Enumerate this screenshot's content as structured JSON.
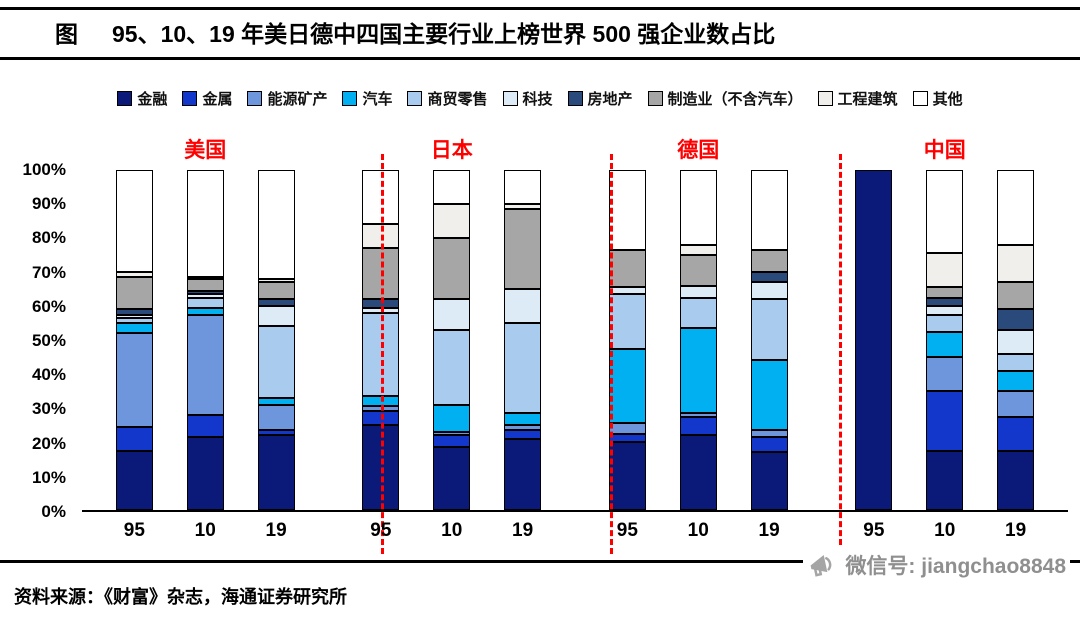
{
  "header": {
    "title_prefix": "图",
    "title_text": "95、10、19 年美日德中四国主要行业上榜世界 500 强企业数占比"
  },
  "footer": {
    "source": "资料来源：《财富》杂志，海通证券研究所",
    "watermark": "微信号: jiangchao8848"
  },
  "chart_data": {
    "type": "bar",
    "stacked": true,
    "unit": "%",
    "title": "95、10、19 年美日德中四国主要行业上榜世界 500 强企业数占比",
    "groups": [
      "美国",
      "日本",
      "德国",
      "中国"
    ],
    "group_label_color": "#ff0000",
    "separator_color": "#ff0000",
    "categories": [
      "95",
      "10",
      "19",
      "95",
      "10",
      "19",
      "95",
      "10",
      "19",
      "95",
      "10",
      "19"
    ],
    "ylim": [
      0,
      100
    ],
    "yticks": [
      "100%",
      "90%",
      "80%",
      "70%",
      "60%",
      "50%",
      "40%",
      "30%",
      "20%",
      "10%",
      "0%"
    ],
    "grid": false,
    "legend_position": "top",
    "series": [
      {
        "name": "金融",
        "color": "#0b1a78",
        "values": [
          17.5,
          21.5,
          22,
          25,
          18.5,
          21,
          20,
          22,
          17,
          100,
          17.5,
          17.5
        ]
      },
      {
        "name": "金属",
        "color": "#1337cb",
        "values": [
          7,
          6.5,
          1.5,
          4,
          3.5,
          2.5,
          2.5,
          5.5,
          4.5,
          0,
          17.5,
          10
        ]
      },
      {
        "name": "能源矿产",
        "color": "#6e96dc",
        "values": [
          27.5,
          29.5,
          7.5,
          1.5,
          1,
          1.5,
          3,
          1,
          2,
          0,
          10,
          7.5
        ]
      },
      {
        "name": "汽车",
        "color": "#00b0f0",
        "values": [
          3,
          2,
          2,
          3,
          8,
          3.5,
          22,
          25,
          20.5,
          0,
          7.5,
          6
        ]
      },
      {
        "name": "商贸零售",
        "color": "#a8cbee",
        "values": [
          1.5,
          3,
          21,
          24.5,
          22,
          26.5,
          16,
          9,
          18,
          0,
          5,
          5
        ]
      },
      {
        "name": "科技",
        "color": "#ddebf7",
        "values": [
          1,
          1,
          6,
          1.5,
          9,
          10,
          2,
          3.5,
          5,
          0,
          2.5,
          7
        ]
      },
      {
        "name": "房地产",
        "color": "#2a4a7c",
        "values": [
          1.5,
          1,
          2,
          2.5,
          0,
          0,
          0,
          0,
          3,
          0,
          2.5,
          6
        ]
      },
      {
        "name": "制造业（不含汽车）",
        "color": "#a6a6a6",
        "values": [
          9.5,
          3.5,
          5,
          15,
          18,
          23.5,
          11,
          9,
          6.5,
          0,
          3,
          8
        ]
      },
      {
        "name": "工程建筑",
        "color": "#f0efec",
        "values": [
          1.5,
          0.5,
          1,
          7,
          10,
          1.5,
          0,
          3,
          0,
          0,
          10,
          11
        ]
      },
      {
        "name": "其他",
        "color": "#ffffff",
        "values": [
          30,
          31.5,
          32,
          16,
          10,
          10,
          23.5,
          22,
          23.5,
          0,
          24.5,
          22
        ]
      }
    ]
  }
}
